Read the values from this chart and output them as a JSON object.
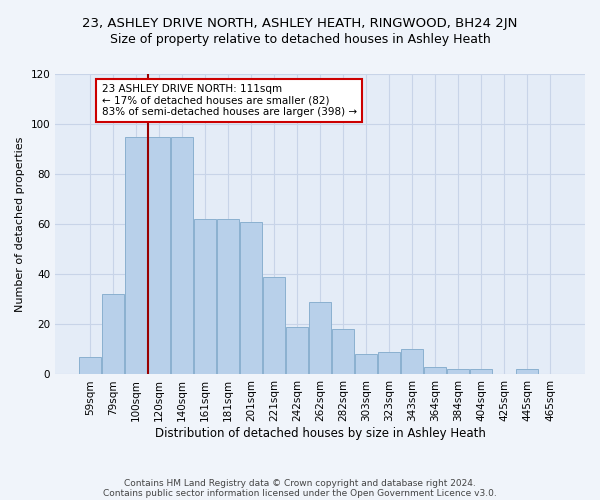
{
  "title1": "23, ASHLEY DRIVE NORTH, ASHLEY HEATH, RINGWOOD, BH24 2JN",
  "title2": "Size of property relative to detached houses in Ashley Heath",
  "xlabel": "Distribution of detached houses by size in Ashley Heath",
  "ylabel": "Number of detached properties",
  "categories": [
    "59sqm",
    "79sqm",
    "100sqm",
    "120sqm",
    "140sqm",
    "161sqm",
    "181sqm",
    "201sqm",
    "221sqm",
    "242sqm",
    "262sqm",
    "282sqm",
    "303sqm",
    "323sqm",
    "343sqm",
    "364sqm",
    "384sqm",
    "404sqm",
    "425sqm",
    "445sqm",
    "465sqm"
  ],
  "values": [
    7,
    32,
    95,
    95,
    95,
    62,
    62,
    61,
    39,
    19,
    29,
    18,
    8,
    9,
    10,
    3,
    2,
    2,
    0,
    2,
    0
  ],
  "bar_color": "#b8d0ea",
  "bar_edge_color": "#8ab0d0",
  "vline_color": "#990000",
  "annotation_text": "23 ASHLEY DRIVE NORTH: 111sqm\n← 17% of detached houses are smaller (82)\n83% of semi-detached houses are larger (398) →",
  "annotation_box_color": "#ffffff",
  "annotation_box_edge": "#cc0000",
  "ylim": [
    0,
    120
  ],
  "yticks": [
    0,
    20,
    40,
    60,
    80,
    100,
    120
  ],
  "grid_color": "#c8d4e8",
  "bg_color": "#e4ecf7",
  "footer1": "Contains HM Land Registry data © Crown copyright and database right 2024.",
  "footer2": "Contains public sector information licensed under the Open Government Licence v3.0.",
  "title1_fontsize": 9.5,
  "title2_fontsize": 9,
  "xlabel_fontsize": 8.5,
  "ylabel_fontsize": 8,
  "tick_fontsize": 7.5,
  "annotation_fontsize": 7.5,
  "footer_fontsize": 6.5
}
